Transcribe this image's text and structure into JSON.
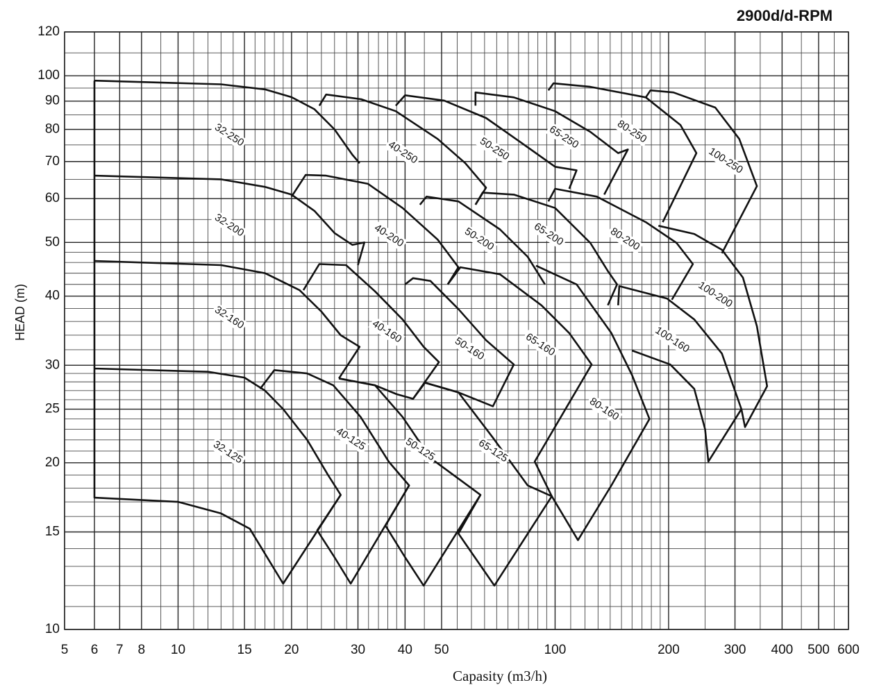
{
  "chart_data": {
    "type": "line",
    "title": "2900d/d-RPM",
    "x_label": "Capasity (m3/h)",
    "y_label": "HEAD (m)",
    "xscale": "log",
    "yscale": "log",
    "xlim": [
      5,
      600
    ],
    "ylim": [
      10,
      120
    ],
    "xticks": [
      5,
      6,
      7,
      8,
      10,
      15,
      20,
      30,
      40,
      50,
      100,
      200,
      300,
      400,
      500,
      600
    ],
    "yticks": [
      10,
      15,
      20,
      25,
      30,
      40,
      50,
      60,
      70,
      80,
      90,
      100,
      120
    ],
    "xgrid": [
      9,
      11,
      12,
      13,
      14,
      16,
      17,
      18,
      19,
      22,
      24,
      26,
      28,
      32,
      34,
      36,
      38,
      45,
      55,
      60,
      65,
      70,
      75,
      80,
      85,
      90,
      95,
      110,
      120,
      130,
      140,
      150,
      160,
      170,
      180,
      190,
      250,
      350,
      450,
      550
    ],
    "ygrid": [
      11,
      12,
      13,
      14,
      16,
      17,
      18,
      19,
      21,
      22,
      23,
      24,
      26,
      27,
      28,
      29,
      32,
      34,
      36,
      38,
      42,
      44,
      46,
      48,
      55,
      65,
      75,
      85,
      95,
      110
    ],
    "grid": true,
    "color": "#111111",
    "series": [
      {
        "name": "32-250",
        "x": [
          6,
          13,
          17,
          20,
          23,
          26,
          29,
          30.3
        ],
        "y": [
          98,
          96.5,
          94.5,
          91.5,
          87,
          80,
          72,
          69.5
        ]
      },
      {
        "name": "40-250",
        "x": [
          23.7,
          24.7,
          30.6,
          37.8,
          48.8,
          57.8,
          65.6,
          61.5
        ],
        "y": [
          88.3,
          92.5,
          90.7,
          86.3,
          76.9,
          69.5,
          62.8,
          58.5
        ]
      },
      {
        "name": "50-250",
        "x": [
          37.8,
          40,
          50.8,
          65.6,
          81.1,
          100,
          114,
          109
        ],
        "y": [
          88.3,
          92.2,
          90.2,
          83.9,
          75.8,
          68.5,
          67.5,
          62.5
        ]
      },
      {
        "name": "65-250",
        "x": [
          61.5,
          61.5,
          77.7,
          100,
          124,
          147,
          156,
          135
        ],
        "y": [
          88.3,
          93.3,
          91.4,
          86.3,
          79.2,
          72.5,
          73.6,
          61
        ]
      },
      {
        "name": "80-250",
        "x": [
          96,
          99,
          124,
          174,
          215,
          237,
          193
        ],
        "y": [
          94.1,
          96.9,
          95.5,
          91.4,
          81.5,
          72.5,
          54.4
        ]
      },
      {
        "name": "100-250",
        "x": [
          174,
          179,
          206,
          266,
          308,
          343,
          277
        ],
        "y": [
          91.4,
          94.1,
          93.3,
          87.6,
          76.9,
          63.2,
          47.8
        ]
      },
      {
        "name": "32-200",
        "x": [
          6,
          13,
          17,
          20,
          23,
          26,
          29,
          31.2,
          30
        ],
        "y": [
          66,
          65,
          63,
          61,
          57,
          52,
          49.5,
          50,
          45.5
        ]
      },
      {
        "name": "40-200",
        "x": [
          20,
          21.8,
          24.7,
          31.9,
          39.4,
          48.8,
          55.4,
          51.9
        ],
        "y": [
          60.5,
          66.2,
          66,
          63.8,
          57.7,
          50.6,
          45.1,
          42
        ]
      },
      {
        "name": "50-200",
        "x": [
          43.8,
          45.6,
          55.4,
          71.4,
          84.6,
          94
        ],
        "y": [
          58.5,
          60.5,
          59.3,
          52.8,
          47.1,
          42
        ]
      },
      {
        "name": "65-200",
        "x": [
          61.5,
          64.2,
          77.7,
          100,
          124,
          138,
          146,
          138
        ],
        "y": [
          58.5,
          61.5,
          61,
          57.7,
          49.9,
          44.4,
          42,
          38.5
        ]
      },
      {
        "name": "80-200",
        "x": [
          96,
          100,
          129,
          174,
          210,
          232,
          204
        ],
        "y": [
          59.3,
          62.5,
          60.5,
          54.4,
          49.9,
          45.7,
          39.4
        ]
      },
      {
        "name": "100-200",
        "x": [
          188,
          234,
          277,
          315,
          343,
          365,
          319,
          312
        ],
        "y": [
          53.6,
          51.8,
          48.5,
          43.2,
          35.3,
          27.5,
          23.2,
          25
        ]
      },
      {
        "name": "32-160",
        "x": [
          6,
          13,
          17,
          21,
          24,
          27,
          30.3,
          26.7
        ],
        "y": [
          46.3,
          45.5,
          44,
          41,
          37.5,
          34,
          32.4,
          28.4
        ]
      },
      {
        "name": "40-160",
        "x": [
          21.5,
          23.7,
          27.9,
          33.3,
          39.4,
          44.8,
          49.2,
          42,
          38,
          33.3,
          26.7
        ],
        "y": [
          41,
          45.7,
          45.5,
          40.8,
          36.3,
          32.4,
          30.4,
          26.1,
          26.6,
          27.6,
          28.4
        ]
      },
      {
        "name": "50-160",
        "x": [
          40,
          42,
          46.7,
          55.4,
          65.6,
          77.7,
          68.4,
          55.4,
          45.2
        ],
        "y": [
          42,
          43.1,
          42.6,
          37.9,
          33.3,
          30.1,
          25.3,
          26.8,
          27.9
        ]
      },
      {
        "name": "65-160",
        "x": [
          51.9,
          56.1,
          71.4,
          92,
          109,
          125,
          88.3,
          98
        ],
        "y": [
          42,
          45.1,
          43.8,
          38.5,
          34.3,
          30.1,
          20.1,
          17.4
        ]
      },
      {
        "name": "80-160",
        "x": [
          89,
          114,
          141,
          160,
          178,
          141,
          115,
          98
        ],
        "y": [
          45.4,
          42,
          34.3,
          28.8,
          24,
          18.2,
          14.5,
          17.4
        ]
      },
      {
        "name": "100-160",
        "x": [
          147,
          148,
          198,
          234,
          277,
          312,
          255,
          250,
          234,
          202,
          160
        ],
        "y": [
          38.5,
          41.7,
          39.6,
          36.3,
          31.5,
          25,
          20.1,
          23,
          27.2,
          30.1,
          31.9
        ]
      },
      {
        "name": "32-125",
        "x": [
          6,
          12,
          15,
          17,
          19,
          22,
          25,
          27,
          19,
          15.5,
          13,
          10,
          6,
          6
        ],
        "y": [
          29.6,
          29.2,
          28.5,
          27,
          25,
          22,
          19,
          17.5,
          12.1,
          15.2,
          16.2,
          17,
          17.3,
          98
        ]
      },
      {
        "name": "40-125",
        "x": [
          16.5,
          18,
          22,
          25.8,
          30.5,
          36.2,
          41,
          28.7,
          26,
          23.4,
          27
        ],
        "y": [
          27.2,
          29.4,
          29,
          27.6,
          24.2,
          20.1,
          18.2,
          12.1,
          13.5,
          15.1,
          17.5
        ]
      },
      {
        "name": "50-125",
        "x": [
          26.7,
          33.3,
          39.4,
          46.7,
          63.4,
          44.8,
          40,
          35.5,
          41
        ],
        "y": [
          28.4,
          27.6,
          24.2,
          20.4,
          17.5,
          12,
          13.5,
          15.4,
          18.2
        ]
      },
      {
        "name": "65-125",
        "x": [
          42,
          45.2,
          55.4,
          68.4,
          84.6,
          98,
          69,
          55.4,
          63.4
        ],
        "y": [
          26.1,
          27.9,
          26.8,
          22.2,
          18.2,
          17.4,
          12,
          14.9,
          17.5
        ]
      }
    ]
  }
}
